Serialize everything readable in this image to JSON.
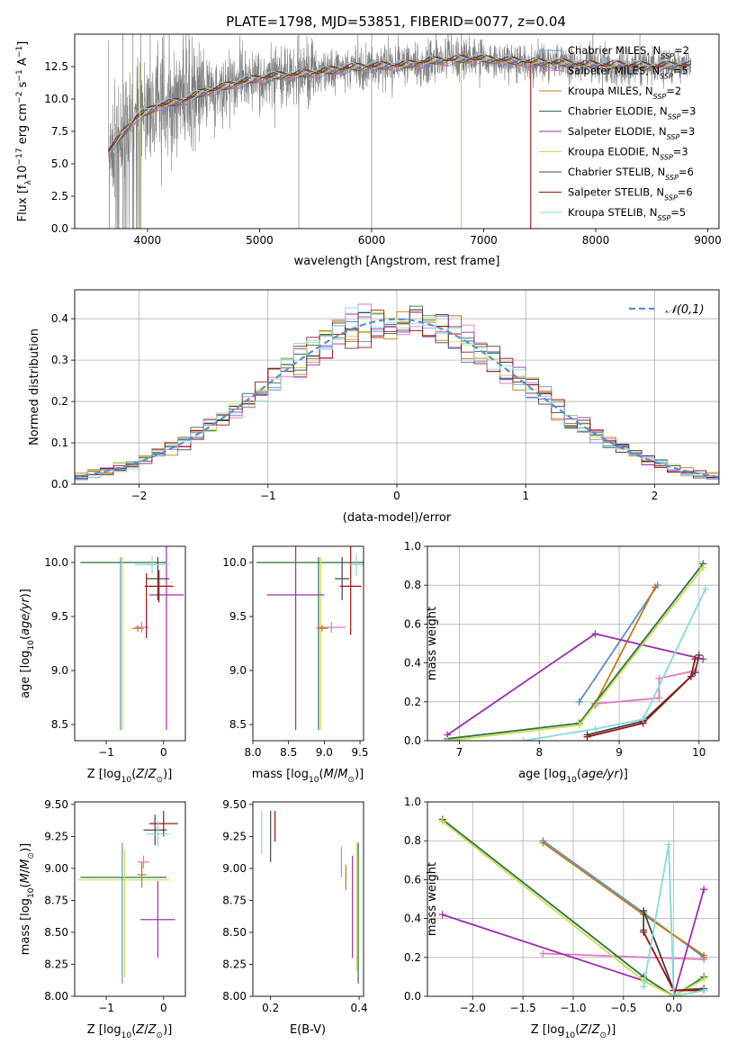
{
  "colors": {
    "chabrier_miles": "#5b8fd6",
    "salpeter_miles": "#e377c2",
    "kroupa_miles": "#c07a10",
    "chabrier_elodie": "#2f6f4a",
    "salpeter_elodie": "#9b2fb0",
    "kroupa_elodie": "#c8e04a",
    "chabrier_stelib": "#444444",
    "salpeter_stelib": "#a01010",
    "kroupa_stelib": "#86d8dc",
    "data_spectrum": "#808080",
    "normal_curve": "#5b8fd6",
    "grid": "#b0b0b0"
  },
  "chart_data": [
    {
      "id": "spectrum",
      "type": "line",
      "title": "PLATE=1798, MJD=53851, FIBERID=0077, z=0.04",
      "xlabel": "wavelength [Angstrom, rest frame]",
      "ylabel": "Flux [fλ10⁻¹⁷ erg cm⁻² s⁻¹ A⁻¹]",
      "xlim": [
        3350,
        9100
      ],
      "ylim": [
        0,
        15
      ],
      "xticks": [
        4000,
        5000,
        6000,
        7000,
        8000,
        9000
      ],
      "yticks": [
        0.0,
        2.5,
        5.0,
        7.5,
        10.0,
        12.5
      ],
      "grid": false,
      "legend_position": "right",
      "legend": [
        "Chabrier MILES, N_SSP=2",
        "Salpeter MILES, N_SSP=5",
        "Kroupa MILES, N_SSP=2",
        "Chabrier ELODIE, N_SSP=3",
        "Salpeter ELODIE, N_SSP=3",
        "Kroupa ELODIE, N_SSP=3",
        "Chabrier STELIB, N_SSP=6",
        "Salpeter STELIB, N_SSP=6",
        "Kroupa STELIB, N_SSP=5"
      ],
      "series_keys": [
        "chabrier_miles",
        "salpeter_miles",
        "kroupa_miles",
        "chabrier_elodie",
        "salpeter_elodie",
        "kroupa_elodie",
        "chabrier_stelib",
        "salpeter_stelib",
        "kroupa_stelib"
      ],
      "model_continuum": {
        "x": [
          3650,
          3750,
          3900,
          4000,
          4100,
          4300,
          4500,
          4800,
          5000,
          5200,
          5500,
          5800,
          6000,
          6300,
          6500,
          6700,
          6900,
          7100,
          7300,
          7500,
          7800,
          8000,
          8200,
          8500,
          8800
        ],
        "y": [
          6.0,
          7.0,
          8.6,
          9.0,
          9.5,
          9.8,
          10.5,
          11.2,
          11.6,
          11.8,
          12.0,
          12.4,
          12.5,
          12.6,
          12.9,
          13.0,
          13.1,
          13.0,
          12.9,
          12.8,
          12.7,
          12.6,
          12.6,
          12.5,
          12.6
        ]
      },
      "drops": [
        {
          "series": "kroupa_elodie",
          "x": 6800
        },
        {
          "series": "salpeter_stelib",
          "x": 7420
        },
        {
          "series": "kroupa_elodie",
          "x": 3930
        }
      ]
    },
    {
      "id": "residuals",
      "type": "histogram",
      "xlabel": "(data-model)/error",
      "ylabel": "Normed distribution",
      "xlim": [
        -2.5,
        2.5
      ],
      "ylim": [
        0,
        0.47
      ],
      "xticks": [
        -2,
        -1,
        0,
        1,
        2
      ],
      "yticks": [
        0.0,
        0.1,
        0.2,
        0.3,
        0.4
      ],
      "grid": true,
      "legend_position": "top-right",
      "legend": [
        "𝒩(0,1)"
      ],
      "bin_width": 0.1
    },
    {
      "id": "age_vs_z",
      "type": "errorbar",
      "xlabel": "Z [log10(Z/Z⊙)]",
      "ylabel": "age  [log10(age/yr)]",
      "xlim": [
        -1.55,
        0.38
      ],
      "ylim": [
        8.35,
        10.15
      ],
      "xticks": [
        -1,
        0
      ],
      "yticks": [
        8.5,
        9.0,
        9.5,
        10.0
      ],
      "points": [
        {
          "series": "kroupa_elodie",
          "x": -0.7,
          "xerr": 0.75,
          "y": 10.0,
          "yerr": 0.0
        },
        {
          "series": "chabrier_elodie",
          "x": -0.7,
          "xerr": 0.75,
          "y": 10.0,
          "yerr": 0.0
        },
        {
          "series": "chabrier_miles",
          "x": -0.75,
          "xerr": 0.0,
          "y": 9.25,
          "yerr": 0.8
        },
        {
          "series": "kroupa_elodie",
          "x": -0.72,
          "xerr": 0.0,
          "y": 9.25,
          "yerr": 0.8
        },
        {
          "series": "salpeter_miles",
          "x": -0.38,
          "xerr": 0.12,
          "y": 9.4,
          "yerr": 0.05
        },
        {
          "series": "kroupa_miles",
          "x": -0.45,
          "xerr": 0.1,
          "y": 9.39,
          "yerr": 0.03
        },
        {
          "series": "salpeter_stelib",
          "x": -0.3,
          "xerr": 0.0,
          "y": 9.6,
          "yerr": 0.3
        },
        {
          "series": "salpeter_elodie",
          "x": 0.05,
          "xerr": 0.3,
          "y": 9.7,
          "yerr": 1.25
        },
        {
          "series": "chabrier_stelib",
          "x": -0.1,
          "xerr": 0.2,
          "y": 9.85,
          "yerr": 0.2
        },
        {
          "series": "salpeter_stelib",
          "x": -0.08,
          "xerr": 0.25,
          "y": 9.78,
          "yerr": 0.15
        },
        {
          "series": "kroupa_stelib",
          "x": -0.2,
          "xerr": 0.3,
          "y": 9.98,
          "yerr": 0.08
        }
      ]
    },
    {
      "id": "age_vs_mass",
      "type": "errorbar",
      "xlabel": "mass [log10(M/M⊙)]",
      "ylabel": "",
      "xlim": [
        8.0,
        9.55
      ],
      "ylim": [
        8.35,
        10.15
      ],
      "xticks": [
        8.0,
        8.5,
        9.0,
        9.5
      ],
      "yticks": [
        8.5,
        9.0,
        9.5,
        10.0
      ],
      "points": [
        {
          "series": "kroupa_elodie",
          "x": 8.9,
          "xerr": 0.85,
          "y": 10.0,
          "yerr": 0.0
        },
        {
          "series": "chabrier_elodie",
          "x": 8.9,
          "xerr": 0.85,
          "y": 10.0,
          "yerr": 0.0
        },
        {
          "series": "chabrier_elodie",
          "x": 8.92,
          "xerr": 0.0,
          "y": 9.25,
          "yerr": 0.8
        },
        {
          "series": "kroupa_elodie",
          "x": 8.95,
          "xerr": 0.0,
          "y": 9.25,
          "yerr": 0.8
        },
        {
          "series": "salpeter_elodie",
          "x": 8.6,
          "xerr": 0.4,
          "y": 9.7,
          "yerr": 1.25
        },
        {
          "series": "salpeter_miles",
          "x": 9.1,
          "xerr": 0.2,
          "y": 9.4,
          "yerr": 0.05
        },
        {
          "series": "kroupa_miles",
          "x": 8.97,
          "xerr": 0.08,
          "y": 9.39,
          "yerr": 0.03
        },
        {
          "series": "chabrier_stelib",
          "x": 9.25,
          "xerr": 0.1,
          "y": 9.85,
          "yerr": 0.2
        },
        {
          "series": "salpeter_stelib",
          "x": 9.37,
          "xerr": 0.15,
          "y": 9.78,
          "yerr": 0.45
        },
        {
          "series": "kroupa_stelib",
          "x": 9.45,
          "xerr": 0.1,
          "y": 9.98,
          "yerr": 0.1
        }
      ]
    },
    {
      "id": "mass_weight_vs_age",
      "type": "line",
      "xlabel": "age  [log10(age/yr)]",
      "ylabel": "mass weight",
      "xlim": [
        6.6,
        10.25
      ],
      "ylim": [
        0,
        1.0
      ],
      "xticks": [
        7,
        8,
        9,
        10
      ],
      "yticks": [
        0.0,
        0.2,
        0.4,
        0.6,
        0.8,
        1.0
      ],
      "grid": true,
      "series": [
        {
          "key": "chabrier_miles",
          "x": [
            8.5,
            9.48
          ],
          "y": [
            0.2,
            0.8
          ]
        },
        {
          "key": "salpeter_miles",
          "x": [
            8.7,
            8.7,
            9.5,
            9.5,
            9.95
          ],
          "y": [
            0.18,
            0.19,
            0.22,
            0.32,
            0.36
          ]
        },
        {
          "key": "kroupa_miles",
          "x": [
            8.7,
            9.45
          ],
          "y": [
            0.19,
            0.79
          ]
        },
        {
          "key": "chabrier_elodie",
          "x": [
            6.85,
            8.5,
            10.05
          ],
          "y": [
            0.01,
            0.09,
            0.91
          ]
        },
        {
          "key": "salpeter_elodie",
          "x": [
            6.85,
            8.7,
            10.05
          ],
          "y": [
            0.03,
            0.55,
            0.42
          ]
        },
        {
          "key": "kroupa_elodie",
          "x": [
            6.85,
            8.5,
            10.05
          ],
          "y": [
            0.0,
            0.08,
            0.89
          ]
        },
        {
          "key": "chabrier_stelib",
          "x": [
            8.6,
            9.3,
            9.95,
            10.0
          ],
          "y": [
            0.03,
            0.1,
            0.35,
            0.44
          ]
        },
        {
          "key": "salpeter_stelib",
          "x": [
            8.6,
            9.3,
            9.9,
            9.95
          ],
          "y": [
            0.02,
            0.09,
            0.33,
            0.42
          ]
        },
        {
          "key": "kroupa_stelib",
          "x": [
            7.8,
            8.7,
            9.3,
            10.08
          ],
          "y": [
            0.0,
            0.06,
            0.11,
            0.78
          ]
        }
      ]
    },
    {
      "id": "mass_vs_z",
      "type": "errorbar",
      "xlabel": "Z [log10(Z/Z⊙)]",
      "ylabel": "mass [log10(M/M⊙)]",
      "xlim": [
        -1.55,
        0.38
      ],
      "ylim": [
        8.0,
        9.52
      ],
      "xticks": [
        -1,
        0
      ],
      "yticks": [
        8.0,
        8.25,
        8.5,
        8.75,
        9.0,
        9.25,
        9.5
      ],
      "points": [
        {
          "series": "chabrier_elodie",
          "x": -0.7,
          "xerr": 0.75,
          "y": 8.93,
          "yerr": 0.0
        },
        {
          "series": "kroupa_elodie",
          "x": -0.7,
          "xerr": 0.8,
          "y": 8.91,
          "yerr": 0.0
        },
        {
          "series": "chabrier_miles",
          "x": -0.72,
          "xerr": 0.0,
          "y": 8.65,
          "yerr": 0.55
        },
        {
          "series": "kroupa_elodie",
          "x": -0.68,
          "xerr": 0.0,
          "y": 8.65,
          "yerr": 0.5
        },
        {
          "series": "salpeter_miles",
          "x": -0.35,
          "xerr": 0.1,
          "y": 9.05,
          "yerr": 0.05
        },
        {
          "series": "kroupa_miles",
          "x": -0.38,
          "xerr": 0.08,
          "y": 8.95,
          "yerr": 0.1
        },
        {
          "series": "salpeter_elodie",
          "x": -0.1,
          "xerr": 0.3,
          "y": 8.6,
          "yerr": 0.3
        },
        {
          "series": "chabrier_stelib",
          "x": -0.15,
          "xerr": 0.2,
          "y": 9.3,
          "yerr": 0.12
        },
        {
          "series": "salpeter_stelib",
          "x": 0.0,
          "xerr": 0.25,
          "y": 9.35,
          "yerr": 0.1
        },
        {
          "series": "kroupa_stelib",
          "x": -0.1,
          "xerr": 0.2,
          "y": 9.27,
          "yerr": 0.1
        }
      ]
    },
    {
      "id": "mass_vs_ebv",
      "type": "errorbar",
      "xlabel": "E(B-V)",
      "ylabel": "",
      "xlim": [
        0.16,
        0.41
      ],
      "ylim": [
        8.0,
        9.52
      ],
      "xticks": [
        0.2,
        0.4
      ],
      "yticks": [
        8.0,
        8.25,
        8.5,
        8.75,
        9.0,
        9.25,
        9.5
      ],
      "points": [
        {
          "series": "kroupa_stelib",
          "x": 0.18,
          "xerr": 0.0,
          "y": 9.28,
          "yerr": 0.17
        },
        {
          "series": "chabrier_stelib",
          "x": 0.2,
          "xerr": 0.0,
          "y": 9.25,
          "yerr": 0.2
        },
        {
          "series": "salpeter_stelib",
          "x": 0.21,
          "xerr": 0.0,
          "y": 9.33,
          "yerr": 0.12
        },
        {
          "series": "salpeter_miles",
          "x": 0.36,
          "xerr": 0.0,
          "y": 9.05,
          "yerr": 0.12
        },
        {
          "series": "kroupa_miles",
          "x": 0.37,
          "xerr": 0.0,
          "y": 8.93,
          "yerr": 0.1
        },
        {
          "series": "salpeter_elodie",
          "x": 0.385,
          "xerr": 0.0,
          "y": 8.7,
          "yerr": 0.4
        },
        {
          "series": "kroupa_elodie",
          "x": 0.395,
          "xerr": 0.0,
          "y": 8.7,
          "yerr": 0.5
        },
        {
          "series": "chabrier_elodie",
          "x": 0.398,
          "xerr": 0.0,
          "y": 8.65,
          "yerr": 0.55
        }
      ]
    },
    {
      "id": "mass_weight_vs_z",
      "type": "line",
      "xlabel": "Z [log10(Z/Z⊙)]",
      "ylabel": "mass weight",
      "xlim": [
        -2.45,
        0.45
      ],
      "ylim": [
        0,
        1.0
      ],
      "xticks": [
        -2.0,
        -1.5,
        -1.0,
        -0.5,
        0.0
      ],
      "yticks": [
        0.0,
        0.2,
        0.4,
        0.6,
        0.8,
        1.0
      ],
      "grid": true,
      "series": [
        {
          "key": "chabrier_miles",
          "x": [
            -1.3,
            -0.3,
            0.3
          ],
          "y": [
            0.8,
            0.43,
            0.2
          ]
        },
        {
          "key": "salpeter_miles",
          "x": [
            -1.3,
            0.3
          ],
          "y": [
            0.22,
            0.19
          ]
        },
        {
          "key": "kroupa_miles",
          "x": [
            -1.3,
            -0.3,
            0.3
          ],
          "y": [
            0.79,
            0.42,
            0.21
          ]
        },
        {
          "key": "chabrier_elodie",
          "x": [
            -2.3,
            -0.3,
            0.0,
            0.3
          ],
          "y": [
            0.91,
            0.1,
            0.0,
            0.1
          ]
        },
        {
          "key": "salpeter_elodie",
          "x": [
            -2.3,
            -0.3,
            0.0,
            0.3
          ],
          "y": [
            0.42,
            0.08,
            0.0,
            0.55
          ]
        },
        {
          "key": "kroupa_elodie",
          "x": [
            -2.3,
            -0.3,
            0.0,
            0.3
          ],
          "y": [
            0.9,
            0.08,
            0.0,
            0.09
          ]
        },
        {
          "key": "chabrier_stelib",
          "x": [
            -0.3,
            -0.3,
            0.0,
            0.3
          ],
          "y": [
            0.34,
            0.44,
            0.03,
            0.04
          ]
        },
        {
          "key": "salpeter_stelib",
          "x": [
            -0.3,
            0.0,
            0.3
          ],
          "y": [
            0.33,
            0.03,
            0.03
          ]
        },
        {
          "key": "kroupa_stelib",
          "x": [
            -0.3,
            -0.05,
            0.0,
            0.3
          ],
          "y": [
            0.05,
            0.78,
            0.0,
            0.03
          ]
        }
      ]
    }
  ]
}
